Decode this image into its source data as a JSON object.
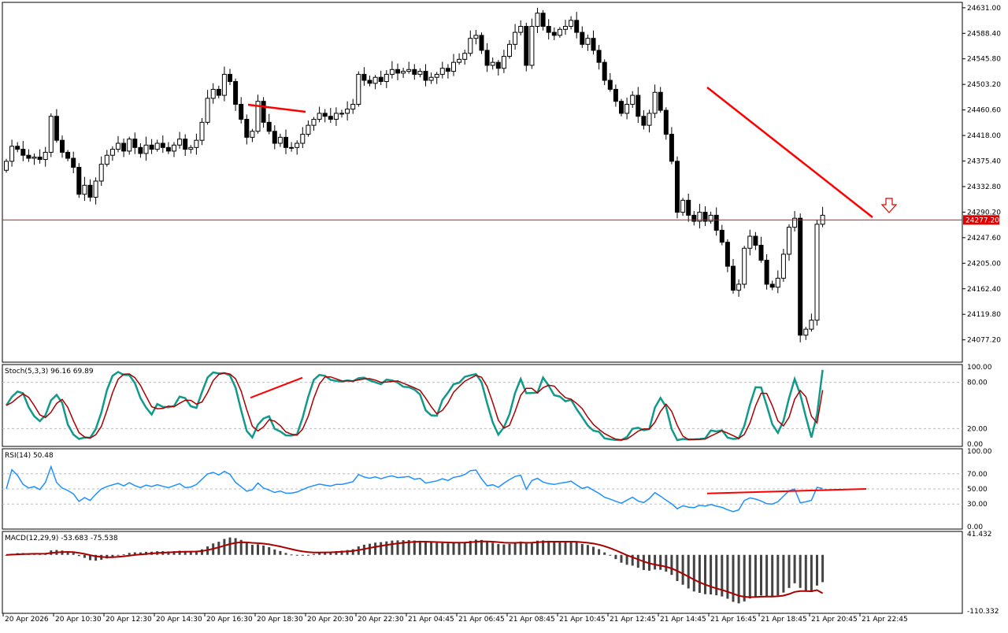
{
  "chart_data": [
    {
      "type": "candlestick",
      "instrument_price_label": "24277.20",
      "ylim": [
        24040,
        24640
      ],
      "price_ticks": [
        "24631.00",
        "24588.40",
        "24545.80",
        "24503.20",
        "24460.60",
        "24418.00",
        "24375.40",
        "24332.80",
        "24290.20",
        "24247.60",
        "24205.00",
        "24162.40",
        "24119.80",
        "24077.20"
      ],
      "x_ticks": [
        "20 Apr 2026",
        "20 Apr 10:30",
        "20 Apr 12:30",
        "20 Apr 14:30",
        "20 Apr 16:30",
        "20 Apr 18:30",
        "20 Apr 20:30",
        "20 Apr 22:30",
        "21 Apr 04:45",
        "21 Apr 06:45",
        "21 Apr 08:45",
        "21 Apr 10:45",
        "21 Apr 12:45",
        "21 Apr 14:45",
        "21 Apr 16:45",
        "21 Apr 18:45",
        "21 Apr 20:45",
        "21 Apr 22:45"
      ],
      "horizontal_line": 24277.2,
      "close": [
        24375,
        24400,
        24395,
        24385,
        24380,
        24382,
        24378,
        24390,
        24450,
        24410,
        24390,
        24380,
        24365,
        24320,
        24335,
        24315,
        24342,
        24370,
        24385,
        24395,
        24405,
        24392,
        24412,
        24398,
        24388,
        24402,
        24395,
        24405,
        24398,
        24392,
        24402,
        24412,
        24395,
        24398,
        24410,
        24440,
        24480,
        24495,
        24485,
        24520,
        24508,
        24470,
        24445,
        24415,
        24425,
        24475,
        24440,
        24425,
        24405,
        24415,
        24398,
        24398,
        24405,
        24420,
        24435,
        24445,
        24455,
        24450,
        24445,
        24455,
        24455,
        24462,
        24470,
        24520,
        24510,
        24505,
        24515,
        24508,
        24520,
        24528,
        24522,
        24525,
        24528,
        24520,
        24525,
        24510,
        24515,
        24520,
        24530,
        24525,
        24540,
        24545,
        24555,
        24580,
        24585,
        24560,
        24535,
        24540,
        24530,
        24550,
        24570,
        24590,
        24600,
        24535,
        24600,
        24622,
        24600,
        24590,
        24585,
        24595,
        24600,
        24610,
        24590,
        24570,
        24580,
        24560,
        24540,
        24510,
        24495,
        24475,
        24455,
        24470,
        24485,
        24450,
        24435,
        24455,
        24490,
        24460,
        24420,
        24375,
        24290,
        24310,
        24285,
        24275,
        24290,
        24275,
        24285,
        24260,
        24240,
        24200,
        24160,
        24170,
        24230,
        24250,
        24235,
        24210,
        24170,
        24165,
        24180,
        24220,
        24265,
        24280,
        24085,
        24095,
        24110,
        24270,
        24285
      ],
      "stochastic": {
        "label": "Stoch(5,3,3) 96.16 69.89",
        "k_last": 96.16,
        "d_last": 69.89,
        "ylim": [
          0,
          100
        ],
        "levels": [
          20,
          80
        ],
        "ticks": [
          "100.00",
          "80.00",
          "20.00",
          "0.00"
        ]
      },
      "rsi": {
        "label": "RSI(14) 50.48",
        "last": 50.48,
        "ylim": [
          0,
          100
        ],
        "levels": [
          30,
          50,
          70
        ],
        "ticks": [
          "100.00",
          "70.00",
          "50.00",
          "30.00",
          "0.00"
        ]
      },
      "macd": {
        "label": "MACD(12,29,9) -53.683 -75.538",
        "macd_last": -53.683,
        "signal_last": -75.538,
        "ylim": [
          -110.332,
          41.432
        ],
        "ticks": [
          "41.432",
          "-110.332"
        ]
      }
    }
  ],
  "colors": {
    "bull": "#ffffff",
    "bear": "#000000",
    "line": "#ff0000",
    "stoch_k": "#11998a",
    "stoch_d": "#aa0000",
    "rsi": "#1e90ff",
    "macd_bar": "#444444",
    "macd_signal": "#aa0000",
    "price_tag_bg": "#e00000"
  },
  "arrow_icon": "down-arrow-icon"
}
